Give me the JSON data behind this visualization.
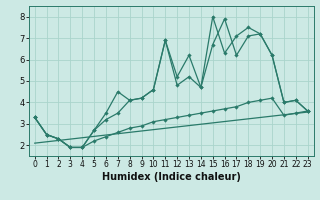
{
  "xlabel": "Humidex (Indice chaleur)",
  "x_values": [
    0,
    1,
    2,
    3,
    4,
    5,
    6,
    7,
    8,
    9,
    10,
    11,
    12,
    13,
    14,
    15,
    16,
    17,
    18,
    19,
    20,
    21,
    22,
    23
  ],
  "line1": [
    3.3,
    2.5,
    2.3,
    1.9,
    1.9,
    2.7,
    3.5,
    4.5,
    4.1,
    4.2,
    4.6,
    6.9,
    4.8,
    5.2,
    4.7,
    8.0,
    6.3,
    7.1,
    7.5,
    7.2,
    6.2,
    4.0,
    4.1,
    3.6
  ],
  "line2": [
    3.3,
    2.5,
    2.3,
    1.9,
    1.9,
    2.7,
    3.2,
    3.5,
    4.1,
    4.2,
    4.6,
    6.9,
    5.2,
    6.2,
    4.7,
    6.7,
    7.9,
    6.2,
    7.1,
    7.2,
    6.2,
    4.0,
    4.1,
    3.6
  ],
  "line3": [
    3.3,
    2.5,
    2.3,
    1.9,
    1.9,
    2.2,
    2.4,
    2.6,
    2.8,
    2.9,
    3.1,
    3.2,
    3.3,
    3.4,
    3.5,
    3.6,
    3.7,
    3.8,
    4.0,
    4.1,
    4.2,
    3.4,
    3.5,
    3.6
  ],
  "trend_x": [
    0,
    23
  ],
  "trend_y": [
    2.1,
    3.55
  ],
  "bg_color": "#cce9e4",
  "line_color": "#2a7a6a",
  "grid_color": "#aad4cc",
  "ylim": [
    1.5,
    8.5
  ],
  "xlim": [
    -0.5,
    23.5
  ],
  "yticks": [
    2,
    3,
    4,
    5,
    6,
    7,
    8
  ],
  "xticks": [
    0,
    1,
    2,
    3,
    4,
    5,
    6,
    7,
    8,
    9,
    10,
    11,
    12,
    13,
    14,
    15,
    16,
    17,
    18,
    19,
    20,
    21,
    22,
    23
  ],
  "tick_fontsize": 5.5,
  "xlabel_fontsize": 7
}
